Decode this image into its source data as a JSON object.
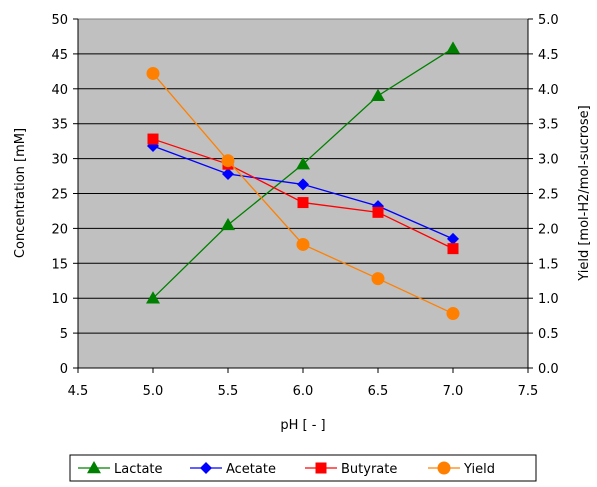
{
  "chart_data": {
    "type": "line",
    "background_color": "#c0c0c0",
    "grid": "horizontal",
    "xlabel": "pH [ - ]",
    "ylabel": "Concentration [mM]",
    "y2label": "Yield [mol-H2/mol-sucrose]",
    "xlim": [
      4.5,
      7.5
    ],
    "xticks": [
      "4.5",
      "5.0",
      "5.5",
      "6.0",
      "6.5",
      "7.0",
      "7.5"
    ],
    "ylim": [
      0,
      50
    ],
    "yticks": [
      "0",
      "5",
      "10",
      "15",
      "20",
      "25",
      "30",
      "35",
      "40",
      "45",
      "50"
    ],
    "y2lim": [
      0,
      5
    ],
    "y2ticks": [
      "0.0",
      "0.5",
      "1.0",
      "1.5",
      "2.0",
      "2.5",
      "3.0",
      "3.5",
      "4.0",
      "4.5",
      "5.0"
    ],
    "legend_position": "bottom",
    "x": [
      5.0,
      5.5,
      6.0,
      6.5,
      7.0
    ],
    "series": [
      {
        "name": "Lactate",
        "axis": "left",
        "color": "#008000",
        "marker": "triangle",
        "values": [
          10.0,
          20.5,
          29.2,
          39.0,
          45.8
        ]
      },
      {
        "name": "Acetate",
        "axis": "left",
        "color": "#0000ff",
        "marker": "diamond",
        "values": [
          31.8,
          27.8,
          26.3,
          23.2,
          18.5
        ]
      },
      {
        "name": "Butyrate",
        "axis": "left",
        "color": "#ff0000",
        "marker": "square",
        "values": [
          32.8,
          29.2,
          23.7,
          22.3,
          17.1
        ]
      },
      {
        "name": "Yield",
        "axis": "right",
        "color": "#ff8000",
        "marker": "circle",
        "values": [
          4.22,
          2.97,
          1.77,
          1.28,
          0.78
        ]
      }
    ]
  }
}
